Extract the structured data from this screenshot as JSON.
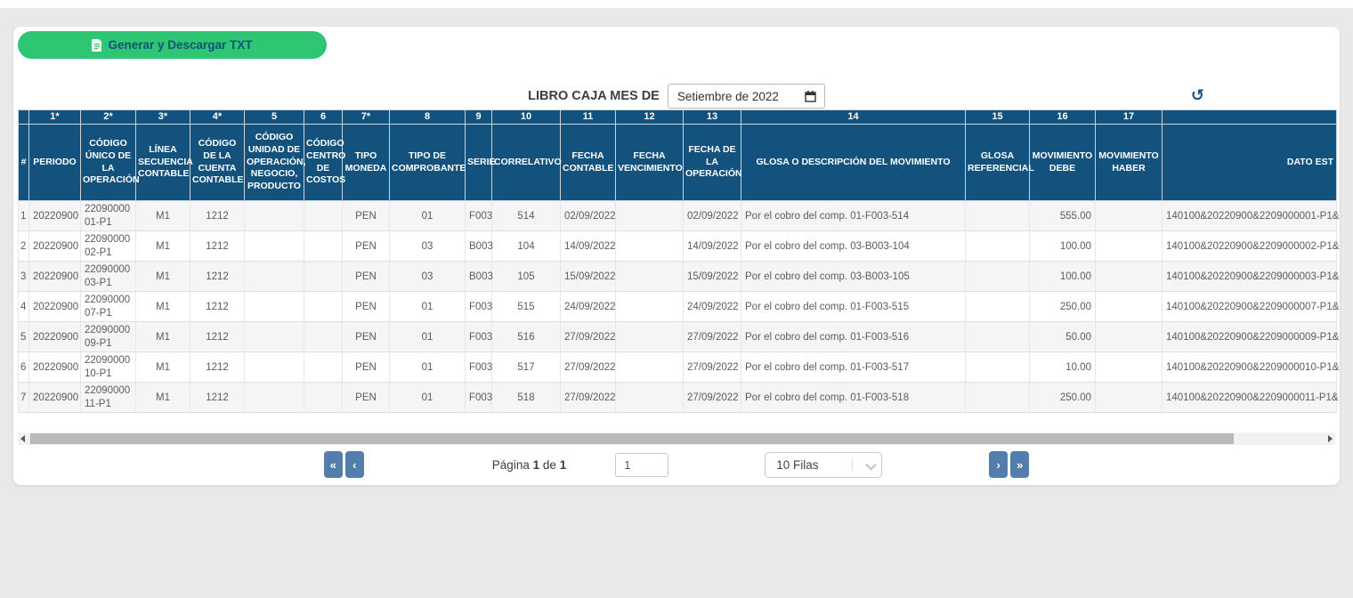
{
  "colors": {
    "header_navy": "#14527E",
    "button_green": "#2EC573",
    "pager_blue": "#527DAC",
    "page_bg": "#e9e9e9"
  },
  "toolbar": {
    "generate_label": "Generar y Descargar TXT",
    "generate_icon": "file-text-icon"
  },
  "filter": {
    "label": "LIBRO CAJA MES DE",
    "month_value": "Setiembre de 2022",
    "calendar_icon": "calendar-icon",
    "refresh_icon": "refresh-icon",
    "refresh_glyph": "↺"
  },
  "table": {
    "number_row": [
      "",
      "1*",
      "2*",
      "3*",
      "4*",
      "5",
      "6",
      "7*",
      "8",
      "9",
      "10",
      "11",
      "12",
      "13",
      "14",
      "15",
      "16",
      "17",
      ""
    ],
    "headers": [
      "#",
      "PERIODO",
      "CÓDIGO ÚNICO DE LA OPERACIÓN",
      "LÍNEA SECUENCIA CONTABLE",
      "CÓDIGO DE LA CUENTA CONTABLE",
      "CÓDIGO UNIDAD DE OPERACIÓN, NEGOCIO, PRODUCTO",
      "CÓDIGO CENTRO DE COSTOS",
      "TIPO MONEDA",
      "TIPO DE COMPROBANTE",
      "SERIE",
      "CORRELATIVO",
      "FECHA CONTABLE",
      "FECHA VENCIMIENTO",
      "FECHA DE LA OPERACIÓN",
      "GLOSA O DESCRIPCIÓN DEL MOVIMIENTO",
      "GLOSA REFERENCIAL",
      "MOVIMIENTO DEBE",
      "MOVIMIENTO HABER",
      "DATO EST"
    ],
    "rows": [
      [
        "1",
        "20220900",
        "2209000001-P1",
        "M1",
        "1212",
        "",
        "",
        "PEN",
        "01",
        "F003",
        "514",
        "02/09/2022",
        "",
        "02/09/2022",
        "Por el cobro del comp. 01-F003-514",
        "",
        "555.00",
        "",
        "140100&20220900&2209000001-P1&"
      ],
      [
        "2",
        "20220900",
        "2209000002-P1",
        "M1",
        "1212",
        "",
        "",
        "PEN",
        "03",
        "B003",
        "104",
        "14/09/2022",
        "",
        "14/09/2022",
        "Por el cobro del comp. 03-B003-104",
        "",
        "100.00",
        "",
        "140100&20220900&2209000002-P1&"
      ],
      [
        "3",
        "20220900",
        "2209000003-P1",
        "M1",
        "1212",
        "",
        "",
        "PEN",
        "03",
        "B003",
        "105",
        "15/09/2022",
        "",
        "15/09/2022",
        "Por el cobro del comp. 03-B003-105",
        "",
        "100.00",
        "",
        "140100&20220900&2209000003-P1&"
      ],
      [
        "4",
        "20220900",
        "2209000007-P1",
        "M1",
        "1212",
        "",
        "",
        "PEN",
        "01",
        "F003",
        "515",
        "24/09/2022",
        "",
        "24/09/2022",
        "Por el cobro del comp. 01-F003-515",
        "",
        "250.00",
        "",
        "140100&20220900&2209000007-P1&"
      ],
      [
        "5",
        "20220900",
        "2209000009-P1",
        "M1",
        "1212",
        "",
        "",
        "PEN",
        "01",
        "F003",
        "516",
        "27/09/2022",
        "",
        "27/09/2022",
        "Por el cobro del comp. 01-F003-516",
        "",
        "50.00",
        "",
        "140100&20220900&2209000009-P1&"
      ],
      [
        "6",
        "20220900",
        "2209000010-P1",
        "M1",
        "1212",
        "",
        "",
        "PEN",
        "01",
        "F003",
        "517",
        "27/09/2022",
        "",
        "27/09/2022",
        "Por el cobro del comp. 01-F003-517",
        "",
        "10.00",
        "",
        "140100&20220900&2209000010-P1&"
      ],
      [
        "7",
        "20220900",
        "2209000011-P1",
        "M1",
        "1212",
        "",
        "",
        "PEN",
        "01",
        "F003",
        "518",
        "27/09/2022",
        "",
        "27/09/2022",
        "Por el cobro del comp. 01-F003-518",
        "",
        "250.00",
        "",
        "140100&20220900&2209000011-P1&"
      ]
    ]
  },
  "pagination": {
    "first_label": "«",
    "prev_label": "‹",
    "page_word": "Página",
    "current_page": "1",
    "of_word": "de",
    "total_pages": "1",
    "page_input": "1",
    "rows_per_page": "10 Filas",
    "next_label": "›",
    "last_label": "»"
  }
}
